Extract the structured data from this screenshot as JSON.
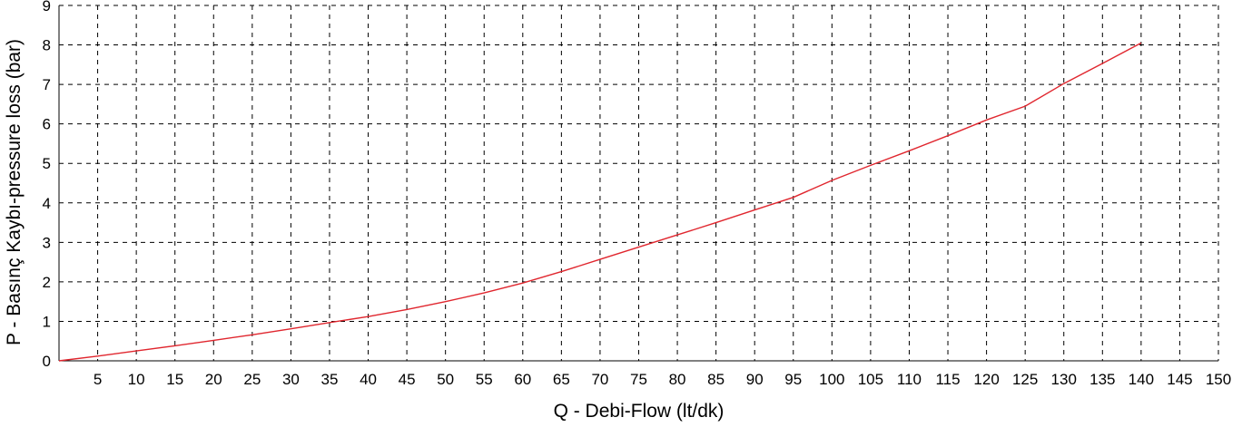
{
  "chart_data": {
    "type": "line",
    "title": "",
    "xlabel": "Q - Debi-Flow (lt/dk)",
    "ylabel": "P - Basınç Kaybı-pressure loss (bar)",
    "xlim": [
      0,
      150
    ],
    "ylim": [
      0,
      9
    ],
    "x_ticks": [
      5,
      10,
      15,
      20,
      25,
      30,
      35,
      40,
      45,
      50,
      55,
      60,
      65,
      70,
      75,
      80,
      85,
      90,
      95,
      100,
      105,
      110,
      115,
      120,
      125,
      130,
      135,
      140,
      145,
      150
    ],
    "y_ticks": [
      0,
      1,
      2,
      3,
      4,
      5,
      6,
      7,
      8,
      9
    ],
    "grid": true,
    "legend": "none",
    "series": [
      {
        "color": "#e0262e",
        "x": [
          0,
          5,
          10,
          15,
          20,
          25,
          30,
          35,
          40,
          45,
          50,
          55,
          60,
          65,
          70,
          75,
          80,
          85,
          90,
          95,
          100,
          105,
          110,
          115,
          120,
          125,
          130,
          135,
          140
        ],
        "y": [
          0,
          0.12,
          0.25,
          0.38,
          0.52,
          0.66,
          0.81,
          0.97,
          1.12,
          1.3,
          1.5,
          1.72,
          1.97,
          2.26,
          2.57,
          2.88,
          3.19,
          3.5,
          3.82,
          4.14,
          4.57,
          4.95,
          5.32,
          5.7,
          6.1,
          6.45,
          7.02,
          7.53,
          8.05
        ]
      }
    ]
  }
}
